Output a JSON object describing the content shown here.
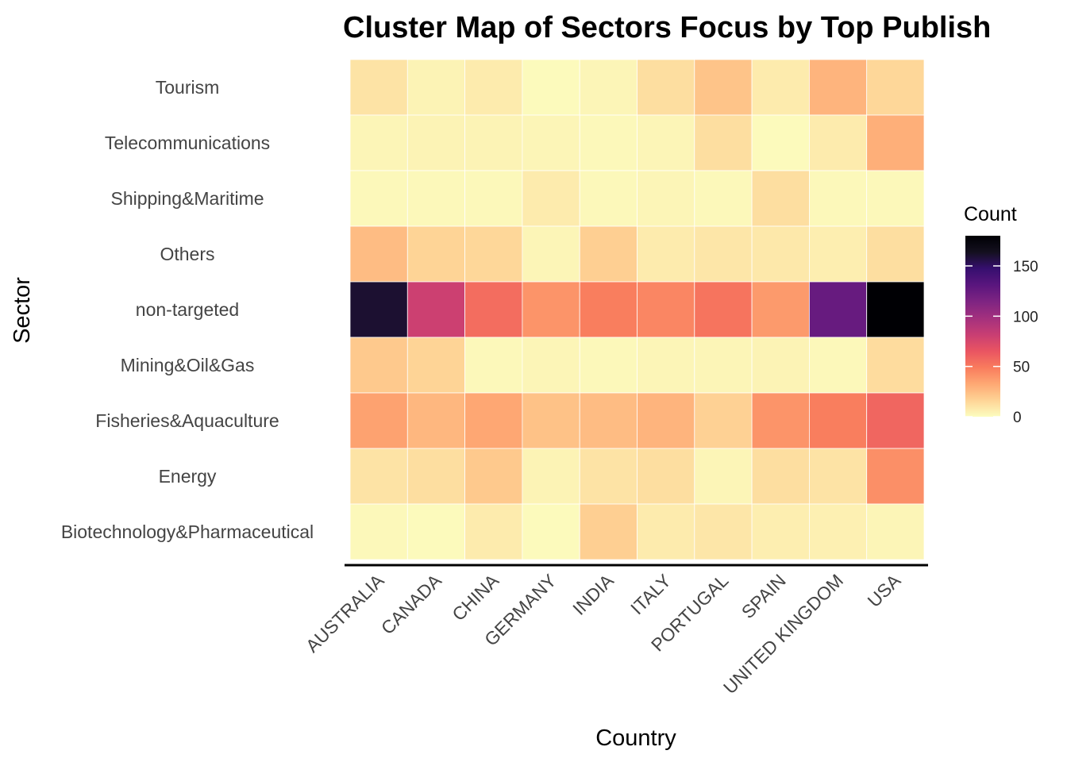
{
  "chart_data": {
    "type": "heatmap",
    "title": "Cluster Map of Sectors Focus by Top Publish",
    "xlabel": "Country",
    "ylabel": "Sector",
    "x": [
      "AUSTRALIA",
      "CANADA",
      "CHINA",
      "GERMANY",
      "INDIA",
      "ITALY",
      "PORTUGAL",
      "SPAIN",
      "UNITED KINGDOM",
      "USA"
    ],
    "y": [
      "Tourism",
      "Telecommunications",
      "Shipping&Maritime",
      "Others",
      "non-targeted",
      "Mining&Oil&Gas",
      "Fisheries&Aquaculture",
      "Energy",
      "Biotechnology&Pharmaceutical"
    ],
    "values": [
      [
        10,
        4,
        7,
        1,
        3,
        12,
        22,
        7,
        28,
        15
      ],
      [
        3,
        4,
        4,
        3,
        2,
        3,
        12,
        1,
        7,
        30
      ],
      [
        2,
        2,
        2,
        7,
        2,
        3,
        2,
        12,
        2,
        2
      ],
      [
        25,
        16,
        15,
        3,
        18,
        7,
        9,
        8,
        6,
        12
      ],
      [
        160,
        80,
        55,
        40,
        48,
        45,
        52,
        38,
        125,
        180
      ],
      [
        20,
        16,
        2,
        3,
        2,
        3,
        3,
        4,
        2,
        13
      ],
      [
        35,
        27,
        33,
        23,
        25,
        28,
        17,
        40,
        48,
        58
      ],
      [
        10,
        12,
        20,
        4,
        10,
        12,
        3,
        12,
        10,
        42
      ],
      [
        2,
        1,
        7,
        1,
        18,
        7,
        9,
        6,
        5,
        3
      ]
    ],
    "legend": {
      "title": "Count",
      "ticks": [
        0,
        50,
        100,
        150
      ],
      "range": [
        0,
        180
      ],
      "placement": "right"
    },
    "colorscale": "magma-reversed",
    "colors": {
      "low": "#fcfdbf",
      "stops": [
        "#fcfdbf",
        "#fed395",
        "#fea873",
        "#f97b5d",
        "#e95462",
        "#c83e73",
        "#a3307e",
        "#7e2482",
        "#5a167e",
        "#360f6f",
        "#14101f",
        "#000004"
      ]
    }
  }
}
